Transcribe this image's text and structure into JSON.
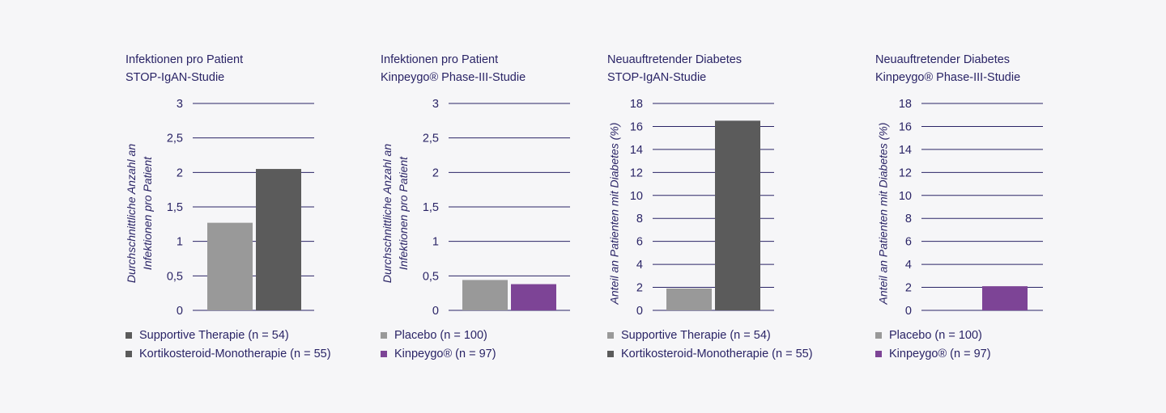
{
  "chart_data": [
    {
      "type": "bar",
      "title_line1": "Infektionen pro Patient",
      "title_line2": "STOP-IgAN-Studie",
      "ylabel_line1": "Durchschnittliche Anzahl an",
      "ylabel_line2": "Infektionen pro Patient",
      "ylim": [
        0,
        3
      ],
      "ticks": [
        0,
        0.5,
        1,
        1.5,
        2,
        2.5,
        3
      ],
      "tick_labels": [
        "0",
        "0,5",
        "1",
        "1,5",
        "2",
        "2,5",
        "3"
      ],
      "grid": true,
      "series": [
        {
          "name": "Supportive Therapie (n = 54)",
          "value": 1.27,
          "color": "#999999"
        },
        {
          "name": "Kortikosteroid-Monotherapie (n = 55)",
          "value": 2.05,
          "color": "#5b5b5b"
        }
      ]
    },
    {
      "type": "bar",
      "title_line1": "Infektionen pro Patient",
      "title_line2": "Kinpeygo® Phase-III-Studie",
      "ylabel_line1": "Durchschnittliche Anzahl an",
      "ylabel_line2": "Infektionen pro Patient",
      "ylim": [
        0,
        3
      ],
      "ticks": [
        0,
        0.5,
        1,
        1.5,
        2,
        2.5,
        3
      ],
      "tick_labels": [
        "0",
        "0,5",
        "1",
        "1,5",
        "2",
        "2,5",
        "3"
      ],
      "grid": true,
      "series": [
        {
          "name": "Placebo (n = 100)",
          "value": 0.44,
          "color": "#999999"
        },
        {
          "name": "Kinpeygo® (n = 97)",
          "value": 0.38,
          "color": "#7d4496"
        }
      ]
    },
    {
      "type": "bar",
      "title_line1": "Neuauftretender Diabetes",
      "title_line2": "STOP-IgAN-Studie",
      "ylabel_line1": "Anteil an Patienten mit Diabetes (%)",
      "ylabel_line2": "",
      "ylim": [
        0,
        18
      ],
      "ticks": [
        0,
        2,
        4,
        6,
        8,
        10,
        12,
        14,
        16,
        18
      ],
      "tick_labels": [
        "0",
        "2",
        "4",
        "6",
        "8",
        "10",
        "12",
        "14",
        "16",
        "18"
      ],
      "grid": true,
      "series": [
        {
          "name": "Supportive Therapie (n = 54)",
          "value": 1.9,
          "color": "#999999"
        },
        {
          "name": "Kortikosteroid-Monotherapie (n = 55)",
          "value": 16.5,
          "color": "#5b5b5b"
        }
      ]
    },
    {
      "type": "bar",
      "title_line1": "Neuauftretender Diabetes",
      "title_line2": "Kinpeygo® Phase-III-Studie",
      "ylabel_line1": "Anteil an Patienten mit Diabetes (%)",
      "ylabel_line2": "",
      "ylim": [
        0,
        18
      ],
      "ticks": [
        0,
        2,
        4,
        6,
        8,
        10,
        12,
        14,
        16,
        18
      ],
      "tick_labels": [
        "0",
        "2",
        "4",
        "6",
        "8",
        "10",
        "12",
        "14",
        "16",
        "18"
      ],
      "grid": true,
      "series": [
        {
          "name": "Placebo (n = 100)",
          "value": 0,
          "color": "#999999"
        },
        {
          "name": "Kinpeygo® (n = 97)",
          "value": 2.1,
          "color": "#7d4496"
        }
      ]
    }
  ]
}
